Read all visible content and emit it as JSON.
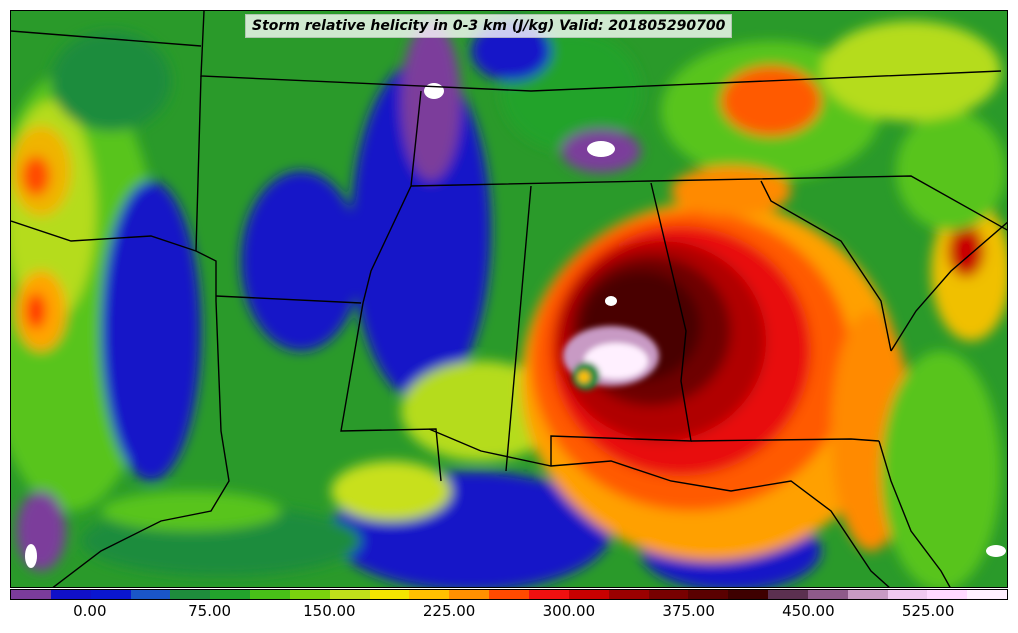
{
  "title": "Storm relative helicity in 0-3 km (J/kg) Valid: 201805290700",
  "colorbar": {
    "colors": [
      "#7b3c9b",
      "#1010c8",
      "#0a16d0",
      "#1a56c8",
      "#1e8c3c",
      "#23a32c",
      "#48c018",
      "#7ad10e",
      "#c0e01a",
      "#f5e400",
      "#ffc000",
      "#ff9000",
      "#ff4a00",
      "#f01010",
      "#c80000",
      "#9a0000",
      "#780000",
      "#5a0000",
      "#3e0000",
      "#5b3050",
      "#8e5a8a",
      "#c89ac4",
      "#f0c8f0",
      "#ffd8ff",
      "#fff0ff"
    ],
    "tick_labels": [
      "0.00",
      "75.00",
      "150.00",
      "225.00",
      "300.00",
      "375.00",
      "450.00",
      "525.00"
    ],
    "tick_values": [
      0,
      75,
      150,
      225,
      300,
      375,
      450,
      525
    ],
    "min": -50,
    "max": 575
  }
}
